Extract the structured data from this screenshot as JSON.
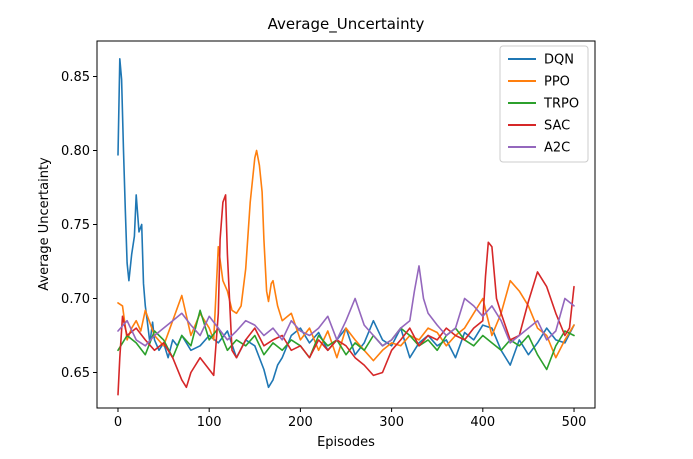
{
  "chart_data": {
    "type": "line",
    "title": "Average_Uncertainty",
    "xlabel": "Episodes",
    "ylabel": "Average Uncertainty",
    "xlim": [
      -23,
      523
    ],
    "ylim": [
      0.626,
      0.874
    ],
    "xticks": [
      0,
      100,
      200,
      300,
      400,
      500
    ],
    "xtick_labels": [
      "0",
      "100",
      "200",
      "300",
      "400",
      "500"
    ],
    "yticks": [
      0.65,
      0.7,
      0.75,
      0.8,
      0.85
    ],
    "ytick_labels": [
      "0.65",
      "0.70",
      "0.75",
      "0.80",
      "0.85"
    ],
    "grid": false,
    "legend_position": "top-right",
    "series": [
      {
        "name": "DQN",
        "color": "#1f77b4",
        "x": [
          0,
          2,
          4,
          6,
          8,
          10,
          12,
          15,
          18,
          20,
          23,
          26,
          28,
          30,
          32,
          35,
          38,
          40,
          45,
          50,
          55,
          60,
          65,
          70,
          75,
          80,
          90,
          100,
          110,
          120,
          130,
          140,
          150,
          160,
          165,
          170,
          175,
          180,
          190,
          200,
          210,
          220,
          230,
          240,
          250,
          260,
          270,
          280,
          290,
          300,
          310,
          320,
          330,
          340,
          350,
          360,
          370,
          380,
          390,
          400,
          410,
          420,
          430,
          440,
          450,
          460,
          470,
          480,
          490,
          500
        ],
        "values": [
          0.797,
          0.862,
          0.848,
          0.8,
          0.76,
          0.724,
          0.712,
          0.73,
          0.742,
          0.77,
          0.745,
          0.75,
          0.71,
          0.695,
          0.685,
          0.67,
          0.684,
          0.672,
          0.665,
          0.67,
          0.66,
          0.672,
          0.668,
          0.675,
          0.67,
          0.665,
          0.668,
          0.675,
          0.67,
          0.678,
          0.66,
          0.672,
          0.668,
          0.652,
          0.64,
          0.645,
          0.655,
          0.66,
          0.675,
          0.68,
          0.67,
          0.677,
          0.665,
          0.672,
          0.68,
          0.662,
          0.67,
          0.685,
          0.672,
          0.668,
          0.68,
          0.66,
          0.67,
          0.675,
          0.668,
          0.672,
          0.66,
          0.677,
          0.672,
          0.682,
          0.68,
          0.665,
          0.655,
          0.672,
          0.662,
          0.67,
          0.68,
          0.672,
          0.67,
          0.682
        ]
      },
      {
        "name": "PPO",
        "color": "#ff7f0e",
        "x": [
          0,
          5,
          10,
          15,
          20,
          25,
          30,
          40,
          50,
          60,
          70,
          80,
          90,
          100,
          105,
          110,
          115,
          120,
          125,
          130,
          135,
          140,
          145,
          150,
          152,
          155,
          158,
          160,
          163,
          165,
          168,
          170,
          175,
          180,
          190,
          200,
          210,
          220,
          230,
          240,
          250,
          260,
          270,
          280,
          290,
          300,
          310,
          320,
          330,
          340,
          350,
          360,
          370,
          380,
          390,
          400,
          410,
          420,
          430,
          440,
          450,
          460,
          470,
          480,
          490,
          500
        ],
        "values": [
          0.697,
          0.695,
          0.672,
          0.68,
          0.685,
          0.678,
          0.692,
          0.675,
          0.668,
          0.685,
          0.702,
          0.675,
          0.69,
          0.68,
          0.672,
          0.735,
          0.712,
          0.705,
          0.692,
          0.69,
          0.695,
          0.72,
          0.765,
          0.795,
          0.8,
          0.79,
          0.772,
          0.74,
          0.705,
          0.698,
          0.71,
          0.712,
          0.695,
          0.685,
          0.69,
          0.672,
          0.68,
          0.665,
          0.678,
          0.66,
          0.68,
          0.672,
          0.665,
          0.658,
          0.665,
          0.67,
          0.668,
          0.675,
          0.672,
          0.68,
          0.677,
          0.668,
          0.675,
          0.68,
          0.69,
          0.7,
          0.675,
          0.69,
          0.712,
          0.705,
          0.695,
          0.68,
          0.675,
          0.66,
          0.672,
          0.682
        ]
      },
      {
        "name": "TRPO",
        "color": "#2ca02c",
        "x": [
          0,
          10,
          20,
          30,
          40,
          50,
          60,
          70,
          80,
          90,
          100,
          110,
          120,
          130,
          140,
          150,
          160,
          170,
          180,
          190,
          200,
          210,
          220,
          230,
          240,
          250,
          260,
          270,
          280,
          290,
          300,
          310,
          320,
          330,
          340,
          350,
          360,
          370,
          380,
          390,
          400,
          410,
          420,
          430,
          440,
          450,
          460,
          470,
          480,
          490,
          500
        ],
        "values": [
          0.665,
          0.675,
          0.67,
          0.662,
          0.678,
          0.672,
          0.66,
          0.675,
          0.668,
          0.692,
          0.672,
          0.68,
          0.665,
          0.672,
          0.668,
          0.675,
          0.662,
          0.67,
          0.665,
          0.672,
          0.668,
          0.66,
          0.675,
          0.668,
          0.672,
          0.662,
          0.67,
          0.665,
          0.675,
          0.668,
          0.672,
          0.68,
          0.675,
          0.668,
          0.672,
          0.665,
          0.675,
          0.68,
          0.672,
          0.668,
          0.675,
          0.67,
          0.665,
          0.672,
          0.668,
          0.675,
          0.662,
          0.652,
          0.668,
          0.678,
          0.675
        ]
      },
      {
        "name": "SAC",
        "color": "#d62728",
        "x": [
          0,
          2,
          5,
          10,
          20,
          30,
          40,
          50,
          60,
          70,
          75,
          80,
          90,
          100,
          105,
          110,
          112,
          115,
          118,
          120,
          123,
          125,
          130,
          140,
          150,
          160,
          170,
          180,
          190,
          200,
          210,
          220,
          230,
          240,
          250,
          260,
          270,
          280,
          290,
          300,
          310,
          320,
          330,
          340,
          350,
          360,
          370,
          380,
          390,
          400,
          403,
          406,
          410,
          415,
          420,
          430,
          440,
          450,
          460,
          470,
          480,
          490,
          495,
          500
        ],
        "values": [
          0.635,
          0.66,
          0.688,
          0.675,
          0.68,
          0.672,
          0.665,
          0.67,
          0.66,
          0.645,
          0.64,
          0.65,
          0.66,
          0.652,
          0.648,
          0.69,
          0.74,
          0.765,
          0.77,
          0.73,
          0.69,
          0.665,
          0.66,
          0.672,
          0.68,
          0.668,
          0.672,
          0.675,
          0.665,
          0.668,
          0.66,
          0.672,
          0.665,
          0.672,
          0.668,
          0.66,
          0.655,
          0.648,
          0.65,
          0.665,
          0.672,
          0.68,
          0.668,
          0.675,
          0.672,
          0.68,
          0.675,
          0.672,
          0.68,
          0.685,
          0.715,
          0.738,
          0.735,
          0.7,
          0.69,
          0.672,
          0.675,
          0.698,
          0.718,
          0.708,
          0.69,
          0.675,
          0.68,
          0.708
        ]
      },
      {
        "name": "A2C",
        "color": "#9467bd",
        "x": [
          0,
          10,
          20,
          30,
          40,
          50,
          60,
          70,
          80,
          90,
          100,
          110,
          120,
          130,
          140,
          150,
          160,
          170,
          180,
          190,
          200,
          210,
          220,
          230,
          240,
          250,
          260,
          270,
          280,
          290,
          300,
          310,
          320,
          325,
          330,
          335,
          340,
          350,
          360,
          370,
          380,
          390,
          400,
          410,
          420,
          430,
          440,
          450,
          460,
          470,
          480,
          490,
          500
        ],
        "values": [
          0.678,
          0.685,
          0.672,
          0.668,
          0.675,
          0.68,
          0.685,
          0.69,
          0.682,
          0.675,
          0.688,
          0.68,
          0.672,
          0.678,
          0.685,
          0.682,
          0.675,
          0.68,
          0.672,
          0.685,
          0.678,
          0.675,
          0.68,
          0.688,
          0.672,
          0.685,
          0.7,
          0.682,
          0.675,
          0.668,
          0.672,
          0.68,
          0.685,
          0.705,
          0.722,
          0.7,
          0.69,
          0.682,
          0.675,
          0.68,
          0.7,
          0.695,
          0.688,
          0.695,
          0.685,
          0.67,
          0.675,
          0.68,
          0.685,
          0.672,
          0.678,
          0.7,
          0.695
        ]
      }
    ]
  }
}
